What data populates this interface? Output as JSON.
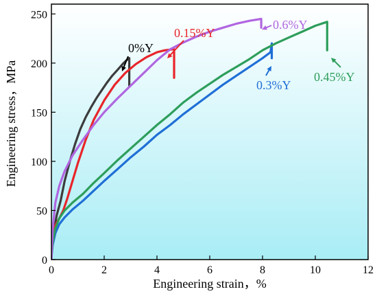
{
  "chart_data": {
    "type": "line",
    "xlabel": "Engineering strain，%",
    "ylabel": "Engineering stress，MPa",
    "xlim": [
      0,
      12
    ],
    "ylim": [
      0,
      260
    ],
    "xticks": [
      0,
      2,
      4,
      6,
      8,
      10,
      12
    ],
    "yticks": [
      0,
      50,
      100,
      150,
      200,
      250
    ],
    "background": "gradient light cyan to white",
    "series": [
      {
        "name": "0%Y",
        "color": "#3c3c3c",
        "x": [
          0,
          0.1,
          0.2,
          0.35,
          0.5,
          0.7,
          0.9,
          1.1,
          1.3,
          1.5,
          1.7,
          1.9,
          2.1,
          2.3,
          2.5,
          2.7,
          2.85,
          2.95,
          2.95
        ],
        "y": [
          10,
          30,
          45,
          60,
          80,
          100,
          118,
          133,
          145,
          155,
          164,
          172,
          180,
          187,
          193,
          199,
          203,
          205,
          177
        ]
      },
      {
        "name": "0.15%Y",
        "color": "#e8252a",
        "x": [
          0,
          0.15,
          0.3,
          0.45,
          0.6,
          0.8,
          1.0,
          1.3,
          1.6,
          2.0,
          2.4,
          2.8,
          3.2,
          3.6,
          4.0,
          4.3,
          4.6,
          4.65,
          4.65
        ],
        "y": [
          22,
          35,
          42,
          50,
          62,
          80,
          98,
          122,
          142,
          162,
          178,
          190,
          199,
          206,
          211,
          213,
          214,
          214,
          185
        ]
      },
      {
        "name": "0.3%Y",
        "color": "#1f6fd6",
        "x": [
          0,
          0.05,
          0.15,
          0.3,
          0.5,
          0.8,
          1.2,
          1.6,
          2.0,
          2.5,
          3.0,
          3.5,
          4.0,
          4.5,
          5.0,
          5.5,
          6.0,
          6.5,
          7.0,
          7.5,
          8.0,
          8.3,
          8.35,
          8.35
        ],
        "y": [
          2,
          15,
          27,
          36,
          43,
          51,
          60,
          70,
          80,
          92,
          104,
          115,
          127,
          137,
          148,
          158,
          168,
          178,
          187,
          196,
          205,
          211,
          220,
          205
        ]
      },
      {
        "name": "0.45%Y",
        "color": "#2e9e5b",
        "x": [
          0,
          0.05,
          0.15,
          0.3,
          0.5,
          0.8,
          1.2,
          1.6,
          2.0,
          2.5,
          3.0,
          3.5,
          4.0,
          4.5,
          5.0,
          5.5,
          6.0,
          6.5,
          7.0,
          7.5,
          8.0,
          8.5,
          9.0,
          9.5,
          10.0,
          10.45,
          10.45
        ],
        "y": [
          2,
          18,
          32,
          42,
          50,
          58,
          67,
          78,
          88,
          101,
          113,
          125,
          137,
          148,
          160,
          170,
          179,
          188,
          196,
          204,
          213,
          220,
          226,
          232,
          238,
          242,
          213
        ]
      },
      {
        "name": "0.6%Y",
        "color": "#b066e0",
        "x": [
          0,
          0.05,
          0.15,
          0.3,
          0.5,
          0.8,
          1.2,
          1.6,
          2.0,
          2.5,
          3.0,
          3.5,
          4.0,
          4.5,
          5.0,
          5.5,
          6.0,
          6.5,
          7.0,
          7.5,
          7.95,
          7.95
        ],
        "y": [
          0,
          32,
          58,
          75,
          90,
          106,
          122,
          137,
          150,
          164,
          177,
          190,
          203,
          214,
          221,
          227,
          232,
          236,
          240,
          243,
          245,
          236
        ]
      }
    ],
    "annotations": [
      {
        "text": "0%Y",
        "color": "#000000"
      },
      {
        "text": "0.15%Y",
        "color": "#e8252a"
      },
      {
        "text": "0.6%Y",
        "color": "#b066e0"
      },
      {
        "text": "0.3%Y",
        "color": "#1f6fd6"
      },
      {
        "text": "0.45%Y",
        "color": "#2e9e5b"
      }
    ]
  }
}
